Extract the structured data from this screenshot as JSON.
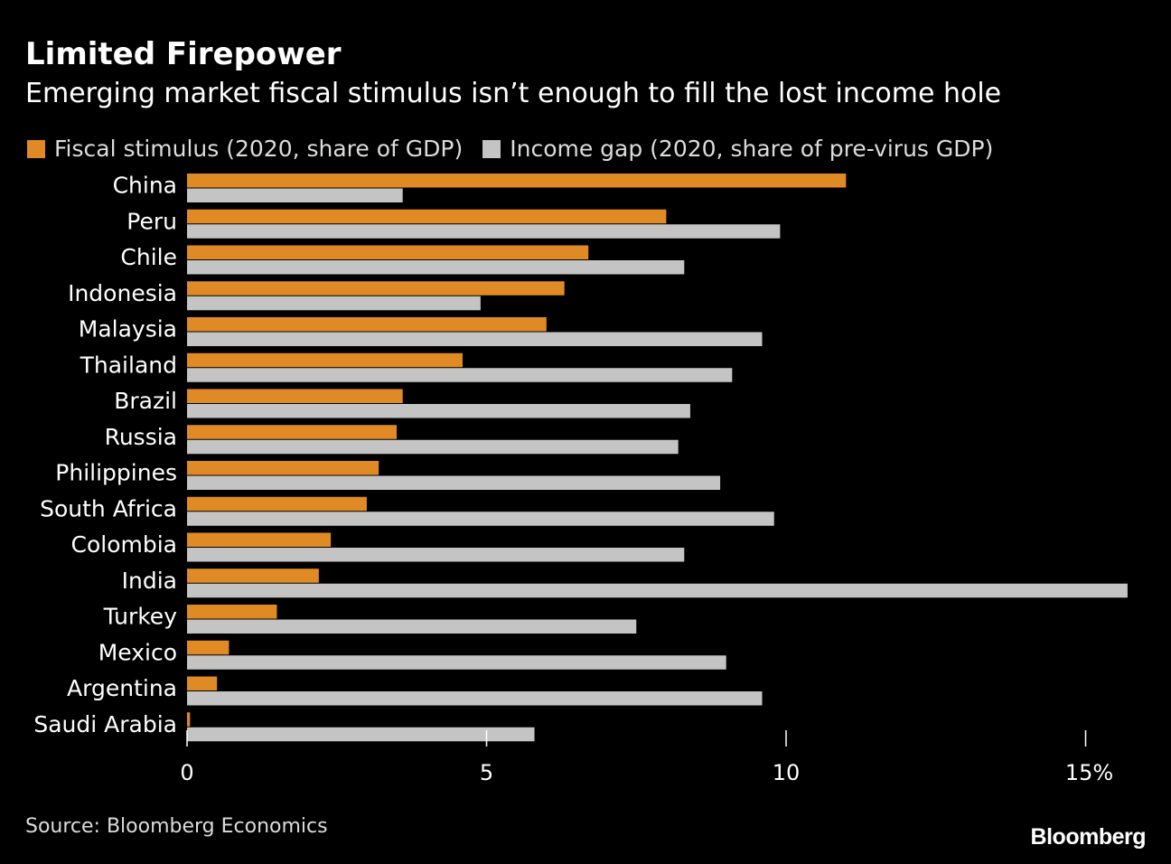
{
  "header": {
    "title": "Limited Firepower",
    "subtitle": "Emerging market fiscal stimulus isn’t enough to fill the lost income hole"
  },
  "footer": {
    "source": "Source: Bloomberg Economics",
    "brand": "Bloomberg"
  },
  "colors": {
    "background": "#000000",
    "fiscal": "#e08a26",
    "income": "#c4c4c4",
    "text": "#ffffff"
  },
  "chart_data": {
    "type": "bar",
    "orientation": "horizontal",
    "categories": [
      "China",
      "Peru",
      "Chile",
      "Indonesia",
      "Malaysia",
      "Thailand",
      "Brazil",
      "Russia",
      "Philippines",
      "South Africa",
      "Colombia",
      "India",
      "Turkey",
      "Mexico",
      "Argentina",
      "Saudi Arabia"
    ],
    "series": [
      {
        "name": "Fiscal stimulus (2020, share of GDP)",
        "color": "#e08a26",
        "values": [
          11.0,
          8.0,
          6.7,
          6.3,
          6.0,
          4.6,
          3.6,
          3.5,
          3.2,
          3.0,
          2.4,
          2.2,
          1.5,
          0.7,
          0.5,
          0.05
        ]
      },
      {
        "name": "Income gap (2020, share of pre-virus GDP)",
        "color": "#c4c4c4",
        "values": [
          3.6,
          9.9,
          8.3,
          4.9,
          9.6,
          9.1,
          8.4,
          8.2,
          8.9,
          9.8,
          8.3,
          15.7,
          7.5,
          9.0,
          9.6,
          5.8
        ]
      }
    ],
    "xticks": [
      "0",
      "5",
      "10",
      "15%"
    ],
    "xtick_values": [
      0,
      5,
      10,
      15
    ],
    "xlim": [
      0,
      15.7
    ],
    "grid": false,
    "legend": "top-left"
  }
}
